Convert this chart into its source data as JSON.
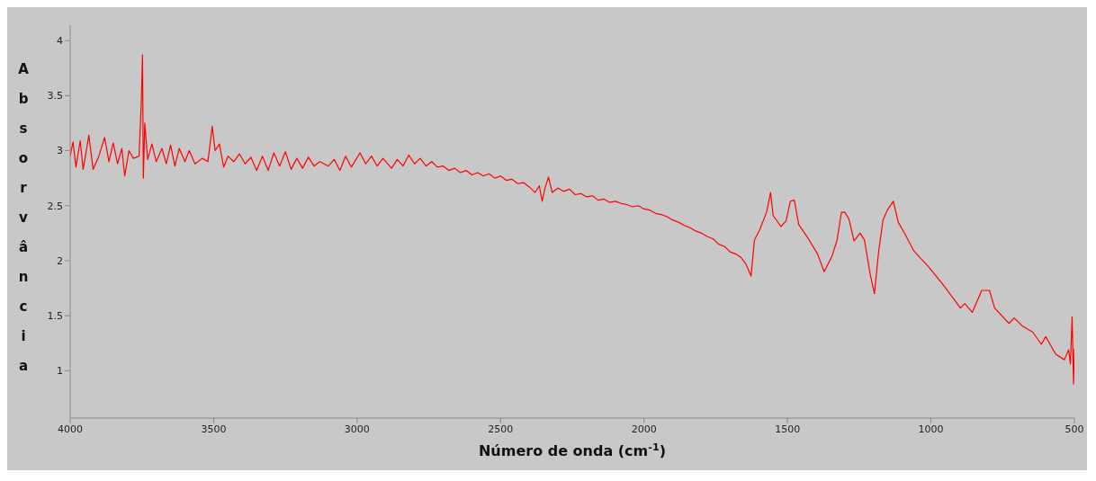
{
  "chart_data": {
    "type": "line",
    "xlabel": "Número de onda (cm$^{-1}$)",
    "ylabel": "Absorvância",
    "xlim": [
      4000,
      500
    ],
    "ylim": [
      0.57,
      4.14
    ],
    "xticks": [
      4000,
      3500,
      3000,
      2500,
      2000,
      1500,
      1000,
      500
    ],
    "yticks": [
      1,
      1.5,
      2,
      2.5,
      3,
      3.5,
      4
    ],
    "grid": false,
    "legend": false,
    "marker": "none",
    "line_style": "solid",
    "series": [
      {
        "color": "#ff0000",
        "x": [
          4000,
          3990,
          3980,
          3965,
          3955,
          3945,
          3935,
          3920,
          3900,
          3880,
          3865,
          3850,
          3835,
          3820,
          3810,
          3795,
          3780,
          3760,
          3752,
          3748,
          3745,
          3740,
          3730,
          3715,
          3700,
          3680,
          3665,
          3650,
          3635,
          3620,
          3600,
          3585,
          3565,
          3540,
          3520,
          3505,
          3495,
          3480,
          3465,
          3450,
          3430,
          3410,
          3390,
          3370,
          3350,
          3330,
          3310,
          3290,
          3270,
          3250,
          3230,
          3210,
          3190,
          3170,
          3150,
          3130,
          3100,
          3080,
          3060,
          3040,
          3020,
          2990,
          2970,
          2950,
          2930,
          2910,
          2880,
          2860,
          2840,
          2820,
          2800,
          2780,
          2760,
          2740,
          2720,
          2700,
          2680,
          2660,
          2640,
          2620,
          2600,
          2580,
          2560,
          2540,
          2520,
          2500,
          2480,
          2460,
          2440,
          2420,
          2400,
          2380,
          2365,
          2355,
          2345,
          2333,
          2320,
          2300,
          2280,
          2260,
          2240,
          2220,
          2200,
          2180,
          2160,
          2140,
          2120,
          2100,
          2080,
          2060,
          2040,
          2020,
          2000,
          1980,
          1960,
          1940,
          1920,
          1900,
          1880,
          1860,
          1840,
          1820,
          1800,
          1780,
          1760,
          1740,
          1720,
          1700,
          1680,
          1662,
          1645,
          1627,
          1615,
          1597,
          1573,
          1559,
          1550,
          1523,
          1505,
          1490,
          1476,
          1461,
          1425,
          1395,
          1372,
          1345,
          1327,
          1312,
          1300,
          1286,
          1268,
          1247,
          1232,
          1212,
          1197,
          1182,
          1167,
          1152,
          1131,
          1114,
          1090,
          1060,
          1010,
          960,
          897,
          882,
          856,
          823,
          796,
          778,
          728,
          710,
          683,
          645,
          615,
          600,
          565,
          535,
          520,
          514,
          508,
          503,
          500
        ],
        "values": [
          2.95,
          3.08,
          2.85,
          3.09,
          2.83,
          2.98,
          3.14,
          2.83,
          2.95,
          3.12,
          2.9,
          3.07,
          2.88,
          3.02,
          2.77,
          3.0,
          2.93,
          2.95,
          3.45,
          3.87,
          2.75,
          3.25,
          2.92,
          3.06,
          2.9,
          3.02,
          2.88,
          3.05,
          2.86,
          3.02,
          2.9,
          3.0,
          2.88,
          2.93,
          2.9,
          3.22,
          3.0,
          3.06,
          2.85,
          2.95,
          2.9,
          2.97,
          2.88,
          2.94,
          2.82,
          2.95,
          2.82,
          2.98,
          2.86,
          2.99,
          2.83,
          2.93,
          2.84,
          2.94,
          2.86,
          2.9,
          2.86,
          2.92,
          2.82,
          2.95,
          2.85,
          2.98,
          2.88,
          2.95,
          2.86,
          2.93,
          2.84,
          2.92,
          2.86,
          2.96,
          2.88,
          2.93,
          2.86,
          2.9,
          2.85,
          2.86,
          2.82,
          2.84,
          2.8,
          2.82,
          2.78,
          2.8,
          2.77,
          2.79,
          2.75,
          2.77,
          2.73,
          2.74,
          2.7,
          2.71,
          2.67,
          2.62,
          2.68,
          2.54,
          2.66,
          2.76,
          2.62,
          2.66,
          2.63,
          2.65,
          2.6,
          2.61,
          2.58,
          2.59,
          2.55,
          2.56,
          2.53,
          2.54,
          2.52,
          2.51,
          2.49,
          2.5,
          2.47,
          2.46,
          2.43,
          2.42,
          2.4,
          2.37,
          2.35,
          2.32,
          2.3,
          2.27,
          2.25,
          2.22,
          2.2,
          2.15,
          2.13,
          2.08,
          2.06,
          2.03,
          1.97,
          1.86,
          2.19,
          2.28,
          2.44,
          2.62,
          2.41,
          2.31,
          2.36,
          2.54,
          2.55,
          2.33,
          2.19,
          2.06,
          1.9,
          2.04,
          2.19,
          2.44,
          2.44,
          2.38,
          2.18,
          2.25,
          2.19,
          1.88,
          1.7,
          2.09,
          2.37,
          2.46,
          2.54,
          2.35,
          2.24,
          2.09,
          1.95,
          1.79,
          1.57,
          1.61,
          1.53,
          1.73,
          1.73,
          1.57,
          1.43,
          1.48,
          1.41,
          1.35,
          1.24,
          1.31,
          1.15,
          1.1,
          1.19,
          1.06,
          1.49,
          0.88,
          1.2
        ]
      }
    ]
  }
}
